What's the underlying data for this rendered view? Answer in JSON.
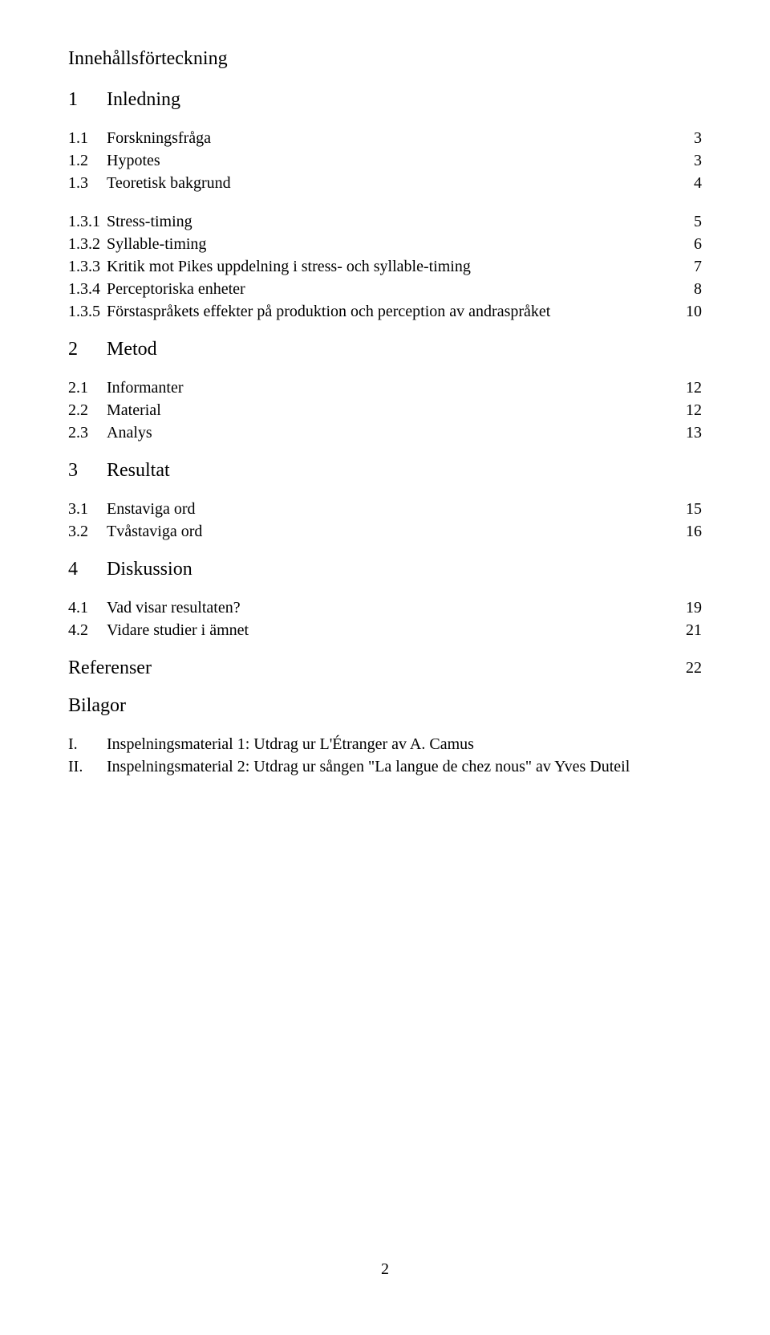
{
  "title": "Innehållsförteckning",
  "sections": [
    {
      "num": "1",
      "label": "Inledning",
      "items": [
        {
          "num": "1.1",
          "label": "Forskningsfråga",
          "page": "3"
        },
        {
          "num": "1.2",
          "label": "Hypotes",
          "page": "3"
        },
        {
          "num": "1.3",
          "label": "Teoretisk bakgrund",
          "page": "4"
        },
        {
          "num": "1.3.1",
          "label": "Stress-timing",
          "page": "5"
        },
        {
          "num": "1.3.2",
          "label": "Syllable-timing",
          "page": "6"
        },
        {
          "num": "1.3.3",
          "label": "Kritik mot Pikes uppdelning i stress- och syllable-timing",
          "page": "7"
        },
        {
          "num": "1.3.4",
          "label": "Perceptoriska enheter",
          "page": "8"
        },
        {
          "num": "1.3.5",
          "label": "Förstaspråkets effekter på produktion och perception av andraspråket",
          "page": "10"
        }
      ]
    },
    {
      "num": "2",
      "label": "Metod",
      "items": [
        {
          "num": "2.1",
          "label": "Informanter",
          "page": "12"
        },
        {
          "num": "2.2",
          "label": "Material",
          "page": "12"
        },
        {
          "num": "2.3",
          "label": "Analys",
          "page": "13"
        }
      ]
    },
    {
      "num": "3",
      "label": "Resultat",
      "items": [
        {
          "num": "3.1",
          "label": "Enstaviga ord",
          "page": "15"
        },
        {
          "num": "3.2",
          "label": "Tvåstaviga ord",
          "page": "16"
        }
      ]
    },
    {
      "num": "4",
      "label": "Diskussion",
      "items": [
        {
          "num": "4.1",
          "label": "Vad visar resultaten?",
          "page": "19"
        },
        {
          "num": "4.2",
          "label": "Vidare studier i ämnet",
          "page": "21"
        }
      ]
    }
  ],
  "references": {
    "label": "Referenser",
    "page": "22"
  },
  "appendices": {
    "label": "Bilagor",
    "items": [
      {
        "num": "I.",
        "label": "Inspelningsmaterial 1: Utdrag ur L'Étranger av A. Camus"
      },
      {
        "num": "II.",
        "label": "Inspelningsmaterial 2: Utdrag ur sången \"La langue de chez nous\" av Yves Duteil"
      }
    ]
  },
  "pageNumber": "2",
  "style": {
    "fontFamily": "Times New Roman",
    "titleFontSize": 24,
    "headingFontSize": 24,
    "bodyFontSize": 20,
    "textColor": "#000000",
    "backgroundColor": "#ffffff"
  }
}
